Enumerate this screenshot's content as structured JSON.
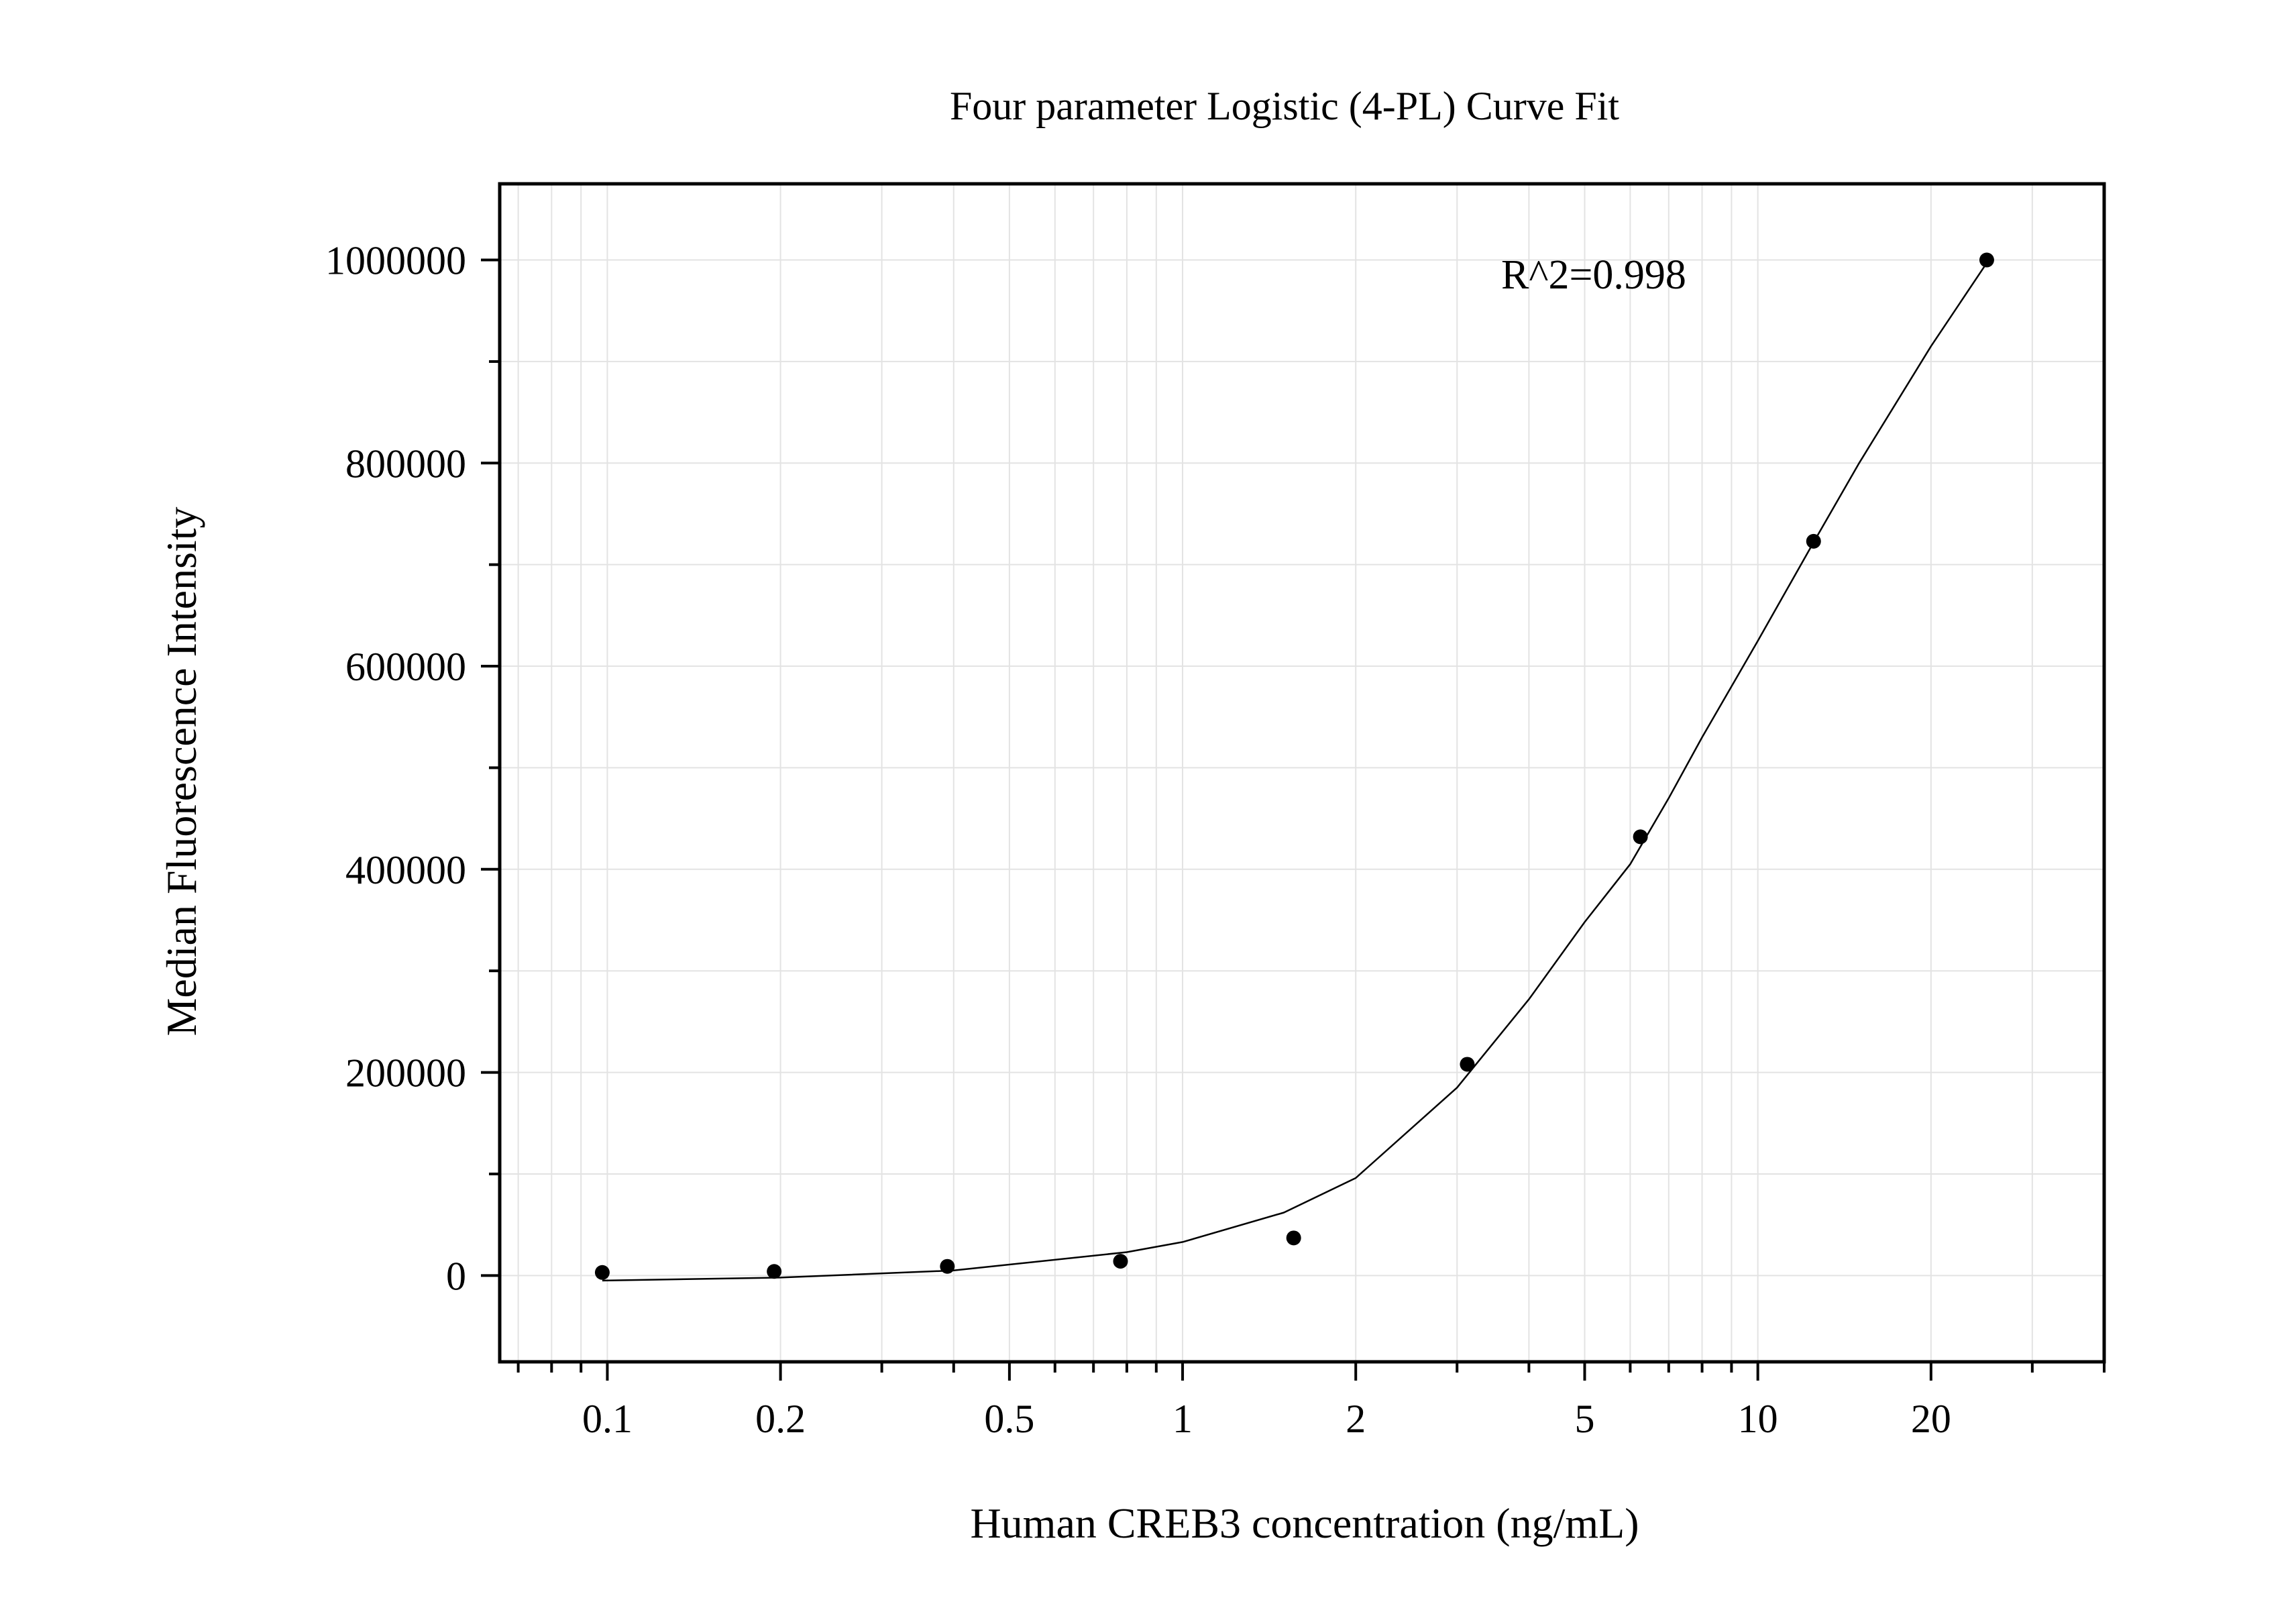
{
  "chart_data": {
    "type": "scatter",
    "title": "Four parameter Logistic (4-PL) Curve Fit",
    "xlabel": "Human CREB3 concentration (ng/mL)",
    "ylabel": "Median Fluorescence Intensity",
    "x_scale": "log",
    "xlim": [
      0.065,
      40
    ],
    "ylim": [
      -85000,
      1075000
    ],
    "x_ticks": [
      {
        "value": 0.1,
        "label": "0.1"
      },
      {
        "value": 0.2,
        "label": "0.2"
      },
      {
        "value": 0.5,
        "label": "0.5"
      },
      {
        "value": 1,
        "label": "1"
      },
      {
        "value": 2,
        "label": "2"
      },
      {
        "value": 5,
        "label": "5"
      },
      {
        "value": 10,
        "label": "10"
      },
      {
        "value": 20,
        "label": "20"
      }
    ],
    "y_ticks": [
      {
        "value": 0,
        "label": "0"
      },
      {
        "value": 200000,
        "label": "200000"
      },
      {
        "value": 400000,
        "label": "400000"
      },
      {
        "value": 600000,
        "label": "600000"
      },
      {
        "value": 800000,
        "label": "800000"
      },
      {
        "value": 1000000,
        "label": "1000000"
      }
    ],
    "grid": true,
    "annotation": "R^2=0.998",
    "points": [
      {
        "x": 0.098,
        "y": 3000
      },
      {
        "x": 0.195,
        "y": 4000
      },
      {
        "x": 0.39,
        "y": 9000
      },
      {
        "x": 0.78,
        "y": 14000
      },
      {
        "x": 1.56,
        "y": 37000
      },
      {
        "x": 3.125,
        "y": 208000
      },
      {
        "x": 6.25,
        "y": 432000
      },
      {
        "x": 12.5,
        "y": 723000
      },
      {
        "x": 25,
        "y": 1000000
      }
    ],
    "fit_curve": {
      "model": "4PL",
      "x_range": [
        0.098,
        25
      ],
      "points": [
        {
          "x": 0.098,
          "y": -5000
        },
        {
          "x": 0.2,
          "y": -2000
        },
        {
          "x": 0.4,
          "y": 5000
        },
        {
          "x": 0.8,
          "y": 23000
        },
        {
          "x": 1.0,
          "y": 33000
        },
        {
          "x": 1.5,
          "y": 62000
        },
        {
          "x": 2.0,
          "y": 96000
        },
        {
          "x": 3.0,
          "y": 185000
        },
        {
          "x": 4.0,
          "y": 272000
        },
        {
          "x": 5.0,
          "y": 348000
        },
        {
          "x": 6.0,
          "y": 405000
        },
        {
          "x": 7.0,
          "y": 470000
        },
        {
          "x": 8.0,
          "y": 530000
        },
        {
          "x": 9.0,
          "y": 580000
        },
        {
          "x": 10.0,
          "y": 625000
        },
        {
          "x": 12.5,
          "y": 722000
        },
        {
          "x": 15.0,
          "y": 800000
        },
        {
          "x": 20.0,
          "y": 915000
        },
        {
          "x": 25.0,
          "y": 997000
        }
      ]
    }
  },
  "colors": {
    "background": "#ffffff",
    "axes": "#000000",
    "grid": "#e3e3e3",
    "points": "#000000",
    "curve": "#000000"
  }
}
